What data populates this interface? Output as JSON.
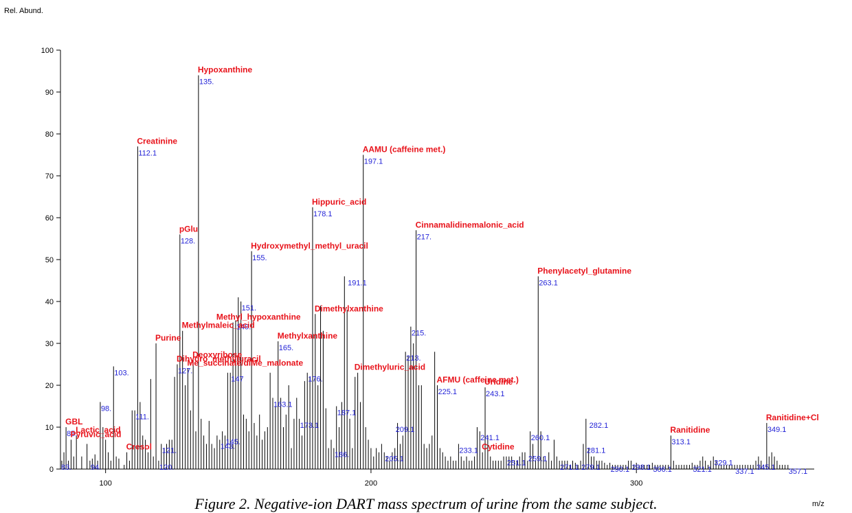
{
  "chart_data": {
    "type": "bar",
    "ylabel": "Rel. Abund.",
    "xlabel": "m/z",
    "caption": "Figure 2.  Negative-ion DART mass spectrum of urine from the same subject.",
    "xlim": [
      83,
      367
    ],
    "ylim": [
      0,
      100
    ],
    "x_ticks": [
      100,
      200,
      300
    ],
    "y_ticks": [
      0,
      10,
      20,
      30,
      40,
      50,
      60,
      70,
      80,
      90,
      100
    ],
    "peaks": [
      [
        83.5,
        2
      ],
      [
        84.3,
        4
      ],
      [
        85.1,
        10
      ],
      [
        86,
        2
      ],
      [
        87,
        7
      ],
      [
        88,
        3
      ],
      [
        89,
        8
      ],
      [
        91,
        3
      ],
      [
        93,
        6
      ],
      [
        94.1,
        2
      ],
      [
        95,
        2.5
      ],
      [
        96,
        3.5
      ],
      [
        97,
        2
      ],
      [
        98,
        16
      ],
      [
        99,
        10
      ],
      [
        100,
        7
      ],
      [
        101,
        4
      ],
      [
        102,
        2
      ],
      [
        103,
        24.5
      ],
      [
        104,
        3
      ],
      [
        105,
        2.5
      ],
      [
        107,
        1
      ],
      [
        108,
        4
      ],
      [
        109,
        2
      ],
      [
        110,
        14
      ],
      [
        111,
        14
      ],
      [
        112.1,
        77
      ],
      [
        113,
        16
      ],
      [
        114,
        8
      ],
      [
        115,
        7
      ],
      [
        116,
        4
      ],
      [
        117,
        21.5
      ],
      [
        118,
        3
      ],
      [
        119,
        30
      ],
      [
        120,
        2
      ],
      [
        121,
        6
      ],
      [
        122,
        5
      ],
      [
        123,
        6
      ],
      [
        124,
        7
      ],
      [
        125,
        7
      ],
      [
        126,
        22
      ],
      [
        127,
        25
      ],
      [
        128,
        56
      ],
      [
        129,
        33
      ],
      [
        130,
        20
      ],
      [
        131,
        24
      ],
      [
        132,
        14
      ],
      [
        133,
        26
      ],
      [
        134,
        9
      ],
      [
        135,
        94
      ],
      [
        136,
        12
      ],
      [
        137,
        8
      ],
      [
        138,
        6
      ],
      [
        139,
        11.5
      ],
      [
        140,
        6
      ],
      [
        141,
        5
      ],
      [
        142,
        8
      ],
      [
        143,
        7
      ],
      [
        144,
        9
      ],
      [
        145,
        8
      ],
      [
        146,
        23
      ],
      [
        147,
        23
      ],
      [
        148,
        35
      ],
      [
        149,
        35.5
      ],
      [
        150,
        41
      ],
      [
        151,
        40
      ],
      [
        152,
        13
      ],
      [
        153,
        12
      ],
      [
        154,
        9
      ],
      [
        155,
        52
      ],
      [
        156,
        11
      ],
      [
        157,
        8
      ],
      [
        158,
        13
      ],
      [
        159,
        7
      ],
      [
        160,
        9
      ],
      [
        161,
        10
      ],
      [
        162,
        23
      ],
      [
        163,
        17
      ],
      [
        164,
        15
      ],
      [
        165,
        30.5
      ],
      [
        166,
        17
      ],
      [
        167,
        10
      ],
      [
        168,
        13
      ],
      [
        169,
        20
      ],
      [
        170,
        5
      ],
      [
        171,
        12
      ],
      [
        172,
        17
      ],
      [
        173,
        12
      ],
      [
        174,
        8
      ],
      [
        175,
        21
      ],
      [
        176,
        23
      ],
      [
        177,
        22
      ],
      [
        178,
        62.5
      ],
      [
        179,
        37
      ],
      [
        180,
        20
      ],
      [
        181,
        39
      ],
      [
        182,
        33
      ],
      [
        183,
        14.5
      ],
      [
        184,
        5
      ],
      [
        185,
        7
      ],
      [
        186,
        5
      ],
      [
        187,
        15
      ],
      [
        188,
        10
      ],
      [
        189,
        16
      ],
      [
        190,
        46
      ],
      [
        191,
        38
      ],
      [
        192,
        12
      ],
      [
        193,
        5
      ],
      [
        194,
        22
      ],
      [
        195,
        23
      ],
      [
        196,
        16
      ],
      [
        197.1,
        75
      ],
      [
        198,
        10
      ],
      [
        199,
        7
      ],
      [
        200,
        5
      ],
      [
        201,
        3
      ],
      [
        202,
        5
      ],
      [
        203,
        4
      ],
      [
        204,
        6
      ],
      [
        205,
        4
      ],
      [
        206,
        3
      ],
      [
        207,
        2
      ],
      [
        208,
        4
      ],
      [
        209,
        5
      ],
      [
        210,
        11
      ],
      [
        211,
        6
      ],
      [
        212,
        8
      ],
      [
        213,
        28
      ],
      [
        214,
        27
      ],
      [
        215,
        34
      ],
      [
        216,
        30
      ],
      [
        217,
        57
      ],
      [
        218,
        20
      ],
      [
        219,
        20
      ],
      [
        220,
        6
      ],
      [
        221,
        5
      ],
      [
        222,
        6
      ],
      [
        223,
        8
      ],
      [
        224,
        28
      ],
      [
        225,
        20
      ],
      [
        226,
        5
      ],
      [
        227,
        4
      ],
      [
        228,
        3
      ],
      [
        229,
        2
      ],
      [
        230,
        3
      ],
      [
        231,
        2
      ],
      [
        232,
        2
      ],
      [
        233,
        6
      ],
      [
        234,
        3
      ],
      [
        235,
        2
      ],
      [
        236,
        3
      ],
      [
        237,
        2
      ],
      [
        238,
        2
      ],
      [
        239,
        3
      ],
      [
        240,
        10
      ],
      [
        241,
        9
      ],
      [
        242,
        4
      ],
      [
        243,
        19.5
      ],
      [
        244,
        8
      ],
      [
        245,
        3
      ],
      [
        246,
        2
      ],
      [
        247,
        2
      ],
      [
        248,
        2
      ],
      [
        249,
        2
      ],
      [
        250,
        3
      ],
      [
        251,
        3
      ],
      [
        252,
        3
      ],
      [
        253,
        3
      ],
      [
        254,
        2
      ],
      [
        255,
        2
      ],
      [
        256,
        3
      ],
      [
        257,
        4
      ],
      [
        258,
        4
      ],
      [
        259,
        2
      ],
      [
        260,
        9
      ],
      [
        261,
        6
      ],
      [
        262,
        2
      ],
      [
        263,
        46
      ],
      [
        264,
        9
      ],
      [
        265,
        3
      ],
      [
        266,
        2
      ],
      [
        267,
        4
      ],
      [
        268,
        2
      ],
      [
        269,
        7
      ],
      [
        270,
        3
      ],
      [
        271,
        2
      ],
      [
        272,
        2
      ],
      [
        273,
        2
      ],
      [
        274,
        2
      ],
      [
        275,
        1
      ],
      [
        276,
        2
      ],
      [
        277,
        1.5
      ],
      [
        278,
        1
      ],
      [
        279,
        2
      ],
      [
        280,
        6
      ],
      [
        281,
        12
      ],
      [
        282,
        5
      ],
      [
        283,
        3
      ],
      [
        284,
        3
      ],
      [
        285,
        2
      ],
      [
        286,
        2
      ],
      [
        287,
        2
      ],
      [
        288,
        1.5
      ],
      [
        289,
        1
      ],
      [
        290,
        1.5
      ],
      [
        291,
        1
      ],
      [
        292,
        1
      ],
      [
        293,
        1
      ],
      [
        294,
        1
      ],
      [
        295,
        1
      ],
      [
        296,
        1
      ],
      [
        297,
        2
      ],
      [
        298,
        2
      ],
      [
        299,
        1
      ],
      [
        300,
        1.5
      ],
      [
        301,
        1
      ],
      [
        302,
        1
      ],
      [
        303,
        1
      ],
      [
        304,
        1
      ],
      [
        305,
        1
      ],
      [
        306,
        1.5
      ],
      [
        307,
        1
      ],
      [
        308,
        1
      ],
      [
        309,
        1
      ],
      [
        310,
        1
      ],
      [
        311,
        1
      ],
      [
        312,
        1
      ],
      [
        313,
        8
      ],
      [
        314,
        2
      ],
      [
        315,
        1
      ],
      [
        316,
        1
      ],
      [
        317,
        1
      ],
      [
        318,
        1
      ],
      [
        319,
        1
      ],
      [
        320,
        1
      ],
      [
        321,
        1.5
      ],
      [
        322,
        1
      ],
      [
        323,
        1
      ],
      [
        324,
        2
      ],
      [
        325,
        3
      ],
      [
        326,
        2
      ],
      [
        327,
        1
      ],
      [
        328,
        2
      ],
      [
        329,
        3
      ],
      [
        330,
        2
      ],
      [
        331,
        1
      ],
      [
        332,
        1
      ],
      [
        333,
        1
      ],
      [
        334,
        1
      ],
      [
        335,
        1
      ],
      [
        336,
        1
      ],
      [
        337,
        1
      ],
      [
        338,
        1
      ],
      [
        339,
        1
      ],
      [
        340,
        1
      ],
      [
        341,
        1
      ],
      [
        342,
        1
      ],
      [
        343,
        1
      ],
      [
        344,
        1
      ],
      [
        345,
        2
      ],
      [
        346,
        3
      ],
      [
        347,
        2
      ],
      [
        348,
        1
      ],
      [
        349.1,
        11
      ],
      [
        350,
        3
      ],
      [
        351,
        4
      ],
      [
        352,
        3
      ],
      [
        353,
        2
      ],
      [
        354,
        1
      ],
      [
        355,
        1
      ],
      [
        356,
        1
      ],
      [
        357.1,
        1
      ]
    ],
    "mass_labels": [
      {
        "text": "83.",
        "x": 83,
        "y": 2
      },
      {
        "text": "85.",
        "x": 85.1,
        "y": 10
      },
      {
        "text": "94.",
        "x": 94.1,
        "y": 2
      },
      {
        "text": "98.",
        "x": 98,
        "y": 16
      },
      {
        "text": "103.",
        "x": 103,
        "y": 24.5
      },
      {
        "text": "111.",
        "x": 111,
        "y": 14
      },
      {
        "text": "112.1",
        "x": 112.1,
        "y": 77
      },
      {
        "text": "120.",
        "x": 120,
        "y": 2
      },
      {
        "text": "121.",
        "x": 121,
        "y": 6
      },
      {
        "text": "127.",
        "x": 127,
        "y": 25
      },
      {
        "text": "128.",
        "x": 128,
        "y": 56
      },
      {
        "text": "135.",
        "x": 135,
        "y": 94
      },
      {
        "text": "143.",
        "x": 143,
        "y": 7
      },
      {
        "text": "145.",
        "x": 145,
        "y": 8
      },
      {
        "text": "147",
        "x": 147,
        "y": 23
      },
      {
        "text": "149.",
        "x": 149,
        "y": 35.5
      },
      {
        "text": "151.",
        "x": 151,
        "y": 40
      },
      {
        "text": "155.",
        "x": 155,
        "y": 52
      },
      {
        "text": "163.1",
        "x": 163,
        "y": 17
      },
      {
        "text": "165.",
        "x": 165,
        "y": 30.5
      },
      {
        "text": "173.1",
        "x": 173,
        "y": 12
      },
      {
        "text": "176.",
        "x": 176,
        "y": 23
      },
      {
        "text": "178.1",
        "x": 178,
        "y": 62.5
      },
      {
        "text": "186.",
        "x": 186,
        "y": 5
      },
      {
        "text": "187.1",
        "x": 187,
        "y": 15
      },
      {
        "text": "191.1",
        "x": 191,
        "y": 46
      },
      {
        "text": "197.1",
        "x": 197.1,
        "y": 75
      },
      {
        "text": "205.1",
        "x": 205,
        "y": 4
      },
      {
        "text": "209.1",
        "x": 209,
        "y": 11
      },
      {
        "text": "213.",
        "x": 213,
        "y": 28
      },
      {
        "text": "215.",
        "x": 215,
        "y": 34
      },
      {
        "text": "217.",
        "x": 217,
        "y": 57
      },
      {
        "text": "225.1",
        "x": 225,
        "y": 20
      },
      {
        "text": "233.1",
        "x": 233,
        "y": 6
      },
      {
        "text": "241.1",
        "x": 241,
        "y": 9
      },
      {
        "text": "243.1",
        "x": 243,
        "y": 19.5
      },
      {
        "text": "251.1",
        "x": 251,
        "y": 3
      },
      {
        "text": "259.1",
        "x": 259,
        "y": 4
      },
      {
        "text": "260.1",
        "x": 260,
        "y": 9
      },
      {
        "text": "263.1",
        "x": 263,
        "y": 46
      },
      {
        "text": "271.1",
        "x": 271,
        "y": 2
      },
      {
        "text": "279.1",
        "x": 279,
        "y": 2
      },
      {
        "text": "281.1",
        "x": 281,
        "y": 6
      },
      {
        "text": "282.1",
        "x": 282,
        "y": 12
      },
      {
        "text": "290.1",
        "x": 290,
        "y": 1.5
      },
      {
        "text": "298.1",
        "x": 298,
        "y": 2
      },
      {
        "text": "306.1",
        "x": 306,
        "y": 1.5
      },
      {
        "text": "313.1",
        "x": 313,
        "y": 8
      },
      {
        "text": "321.1",
        "x": 321,
        "y": 1.5
      },
      {
        "text": "329.1",
        "x": 329,
        "y": 3
      },
      {
        "text": "337.1",
        "x": 337,
        "y": 1
      },
      {
        "text": "345.1",
        "x": 345,
        "y": 2
      },
      {
        "text": "349.1",
        "x": 349.1,
        "y": 11
      },
      {
        "text": "357.1",
        "x": 357.1,
        "y": 1
      }
    ],
    "compound_labels": [
      {
        "text": "GBL",
        "x": 85.1,
        "y": 10
      },
      {
        "text": "Pyruvic_acid",
        "x": 87,
        "y": 7
      },
      {
        "text": "Lactic_acid",
        "x": 89,
        "y": 8
      },
      {
        "text": "Cresol",
        "x": 108,
        "y": 4
      },
      {
        "text": "Creatinine",
        "x": 112.1,
        "y": 77
      },
      {
        "text": "Purine",
        "x": 119,
        "y": 30
      },
      {
        "text": "pGlu",
        "x": 128,
        "y": 56
      },
      {
        "text": "Dihydro_methyluracil",
        "x": 127,
        "y": 25
      },
      {
        "text": "Hypoxanthine",
        "x": 135,
        "y": 94
      },
      {
        "text": "Deoxyribose",
        "x": 133,
        "y": 26
      },
      {
        "text": "Me_succinate/diMe_malonate",
        "x": 131,
        "y": 24
      },
      {
        "text": "Methylmaleic_acid",
        "x": 129,
        "y": 33
      },
      {
        "text": "Methyl_hypoxanthine",
        "x": 142,
        "y": 35
      },
      {
        "text": "Hydroxymethyl_methyl_uracil",
        "x": 155,
        "y": 52
      },
      {
        "text": "Methylxanthine",
        "x": 165,
        "y": 30.5
      },
      {
        "text": "Hippuric_acid",
        "x": 178,
        "y": 62.5
      },
      {
        "text": "Dimethylxanthine",
        "x": 179,
        "y": 37
      },
      {
        "text": "AAMU (caffeine met.)",
        "x": 197.1,
        "y": 75
      },
      {
        "text": "Dimethyluric_acid",
        "x": 194,
        "y": 23
      },
      {
        "text": "Cinnamalidinemalonic_acid",
        "x": 217,
        "y": 57
      },
      {
        "text": "AFMU (caffeine met.)",
        "x": 225,
        "y": 20
      },
      {
        "text": "Uridine",
        "x": 243,
        "y": 19.5
      },
      {
        "text": "Cytidine",
        "x": 242,
        "y": 4
      },
      {
        "text": "Phenylacetyl_glutamine",
        "x": 263,
        "y": 46
      },
      {
        "text": "Ranitidine",
        "x": 313,
        "y": 8
      },
      {
        "text": "Ranitidine+Cl",
        "x": 349.1,
        "y": 11
      }
    ]
  },
  "colors": {
    "peak": "#000000",
    "mass_label": "#1f1fd6",
    "compound_label": "#e8131b",
    "axis": "#000000"
  }
}
